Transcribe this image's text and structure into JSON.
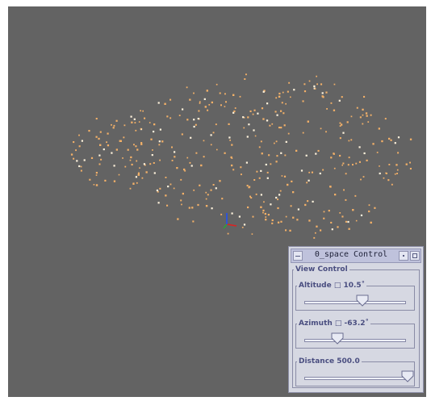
{
  "window": {
    "title": "0_space Control"
  },
  "view_control": {
    "label": "View Control",
    "sliders": {
      "altitude": {
        "label": "Altitude □ 10.5˚",
        "fraction": 0.56
      },
      "azimuth": {
        "label": "Azimuth □ -63.2˚",
        "fraction": 0.32
      },
      "distance": {
        "label": "Distance 500.0",
        "fraction": 1.0
      }
    }
  },
  "scene": {
    "background_color": "#636363",
    "point_color": "#f2b068",
    "bright_point_color": "#fff3dc",
    "axis_colors": {
      "x": "#e02020",
      "y": "#2050f0",
      "z": "#20b030"
    }
  }
}
